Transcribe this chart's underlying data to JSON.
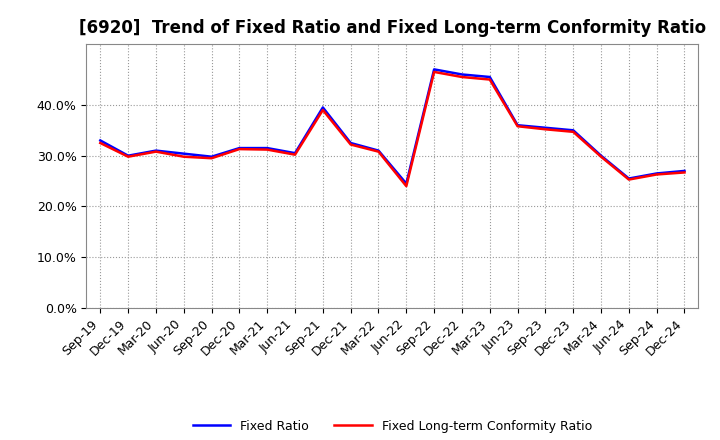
{
  "title": "[6920]  Trend of Fixed Ratio and Fixed Long-term Conformity Ratio",
  "x_labels": [
    "Sep-19",
    "Dec-19",
    "Mar-20",
    "Jun-20",
    "Sep-20",
    "Dec-20",
    "Mar-21",
    "Jun-21",
    "Sep-21",
    "Dec-21",
    "Mar-22",
    "Jun-22",
    "Sep-22",
    "Dec-22",
    "Mar-23",
    "Jun-23",
    "Sep-23",
    "Dec-23",
    "Mar-24",
    "Jun-24",
    "Sep-24",
    "Dec-24"
  ],
  "fixed_ratio": [
    0.33,
    0.3,
    0.31,
    0.304,
    0.298,
    0.315,
    0.315,
    0.305,
    0.395,
    0.325,
    0.31,
    0.245,
    0.47,
    0.46,
    0.455,
    0.36,
    0.355,
    0.35,
    0.3,
    0.255,
    0.265,
    0.27
  ],
  "fixed_lt_ratio": [
    0.325,
    0.298,
    0.308,
    0.298,
    0.295,
    0.313,
    0.312,
    0.302,
    0.39,
    0.322,
    0.308,
    0.24,
    0.465,
    0.455,
    0.45,
    0.358,
    0.352,
    0.347,
    0.298,
    0.253,
    0.263,
    0.267
  ],
  "line_color_blue": "#0000FF",
  "line_color_red": "#FF0000",
  "ylim": [
    0.0,
    0.52
  ],
  "yticks": [
    0.0,
    0.1,
    0.2,
    0.3,
    0.4
  ],
  "background_color": "#FFFFFF",
  "plot_bg_color": "#FFFFFF",
  "grid_color": "#999999",
  "legend_fixed_ratio": "Fixed Ratio",
  "legend_fixed_lt_ratio": "Fixed Long-term Conformity Ratio",
  "title_fontsize": 12,
  "tick_fontsize": 9,
  "legend_fontsize": 9,
  "linewidth": 1.8
}
